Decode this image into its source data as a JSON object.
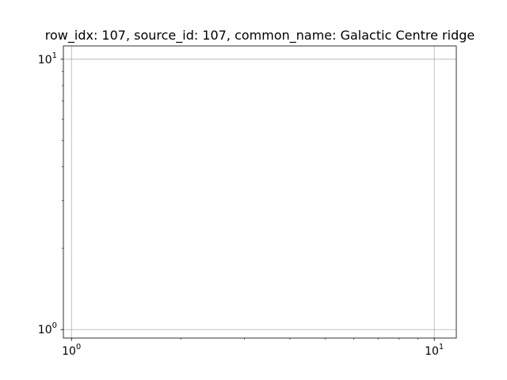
{
  "chart_data": {
    "type": "line",
    "title": "row_idx: 107, source_id: 107, common_name: Galactic Centre ridge",
    "xlabel": "",
    "ylabel": "",
    "xscale": "log",
    "yscale": "log",
    "xlim": [
      0.95,
      11.5
    ],
    "ylim": [
      0.93,
      11.2
    ],
    "grid": true,
    "series": [],
    "x_major_ticks": [
      {
        "value": 1,
        "label": "10",
        "exp": "0"
      },
      {
        "value": 10,
        "label": "10",
        "exp": "1"
      }
    ],
    "y_major_ticks": [
      {
        "value": 1,
        "label": "10",
        "exp": "0"
      },
      {
        "value": 10,
        "label": "10",
        "exp": "1"
      }
    ],
    "minor_ticks": [
      2,
      3,
      4,
      5,
      6,
      7,
      8,
      9
    ]
  }
}
